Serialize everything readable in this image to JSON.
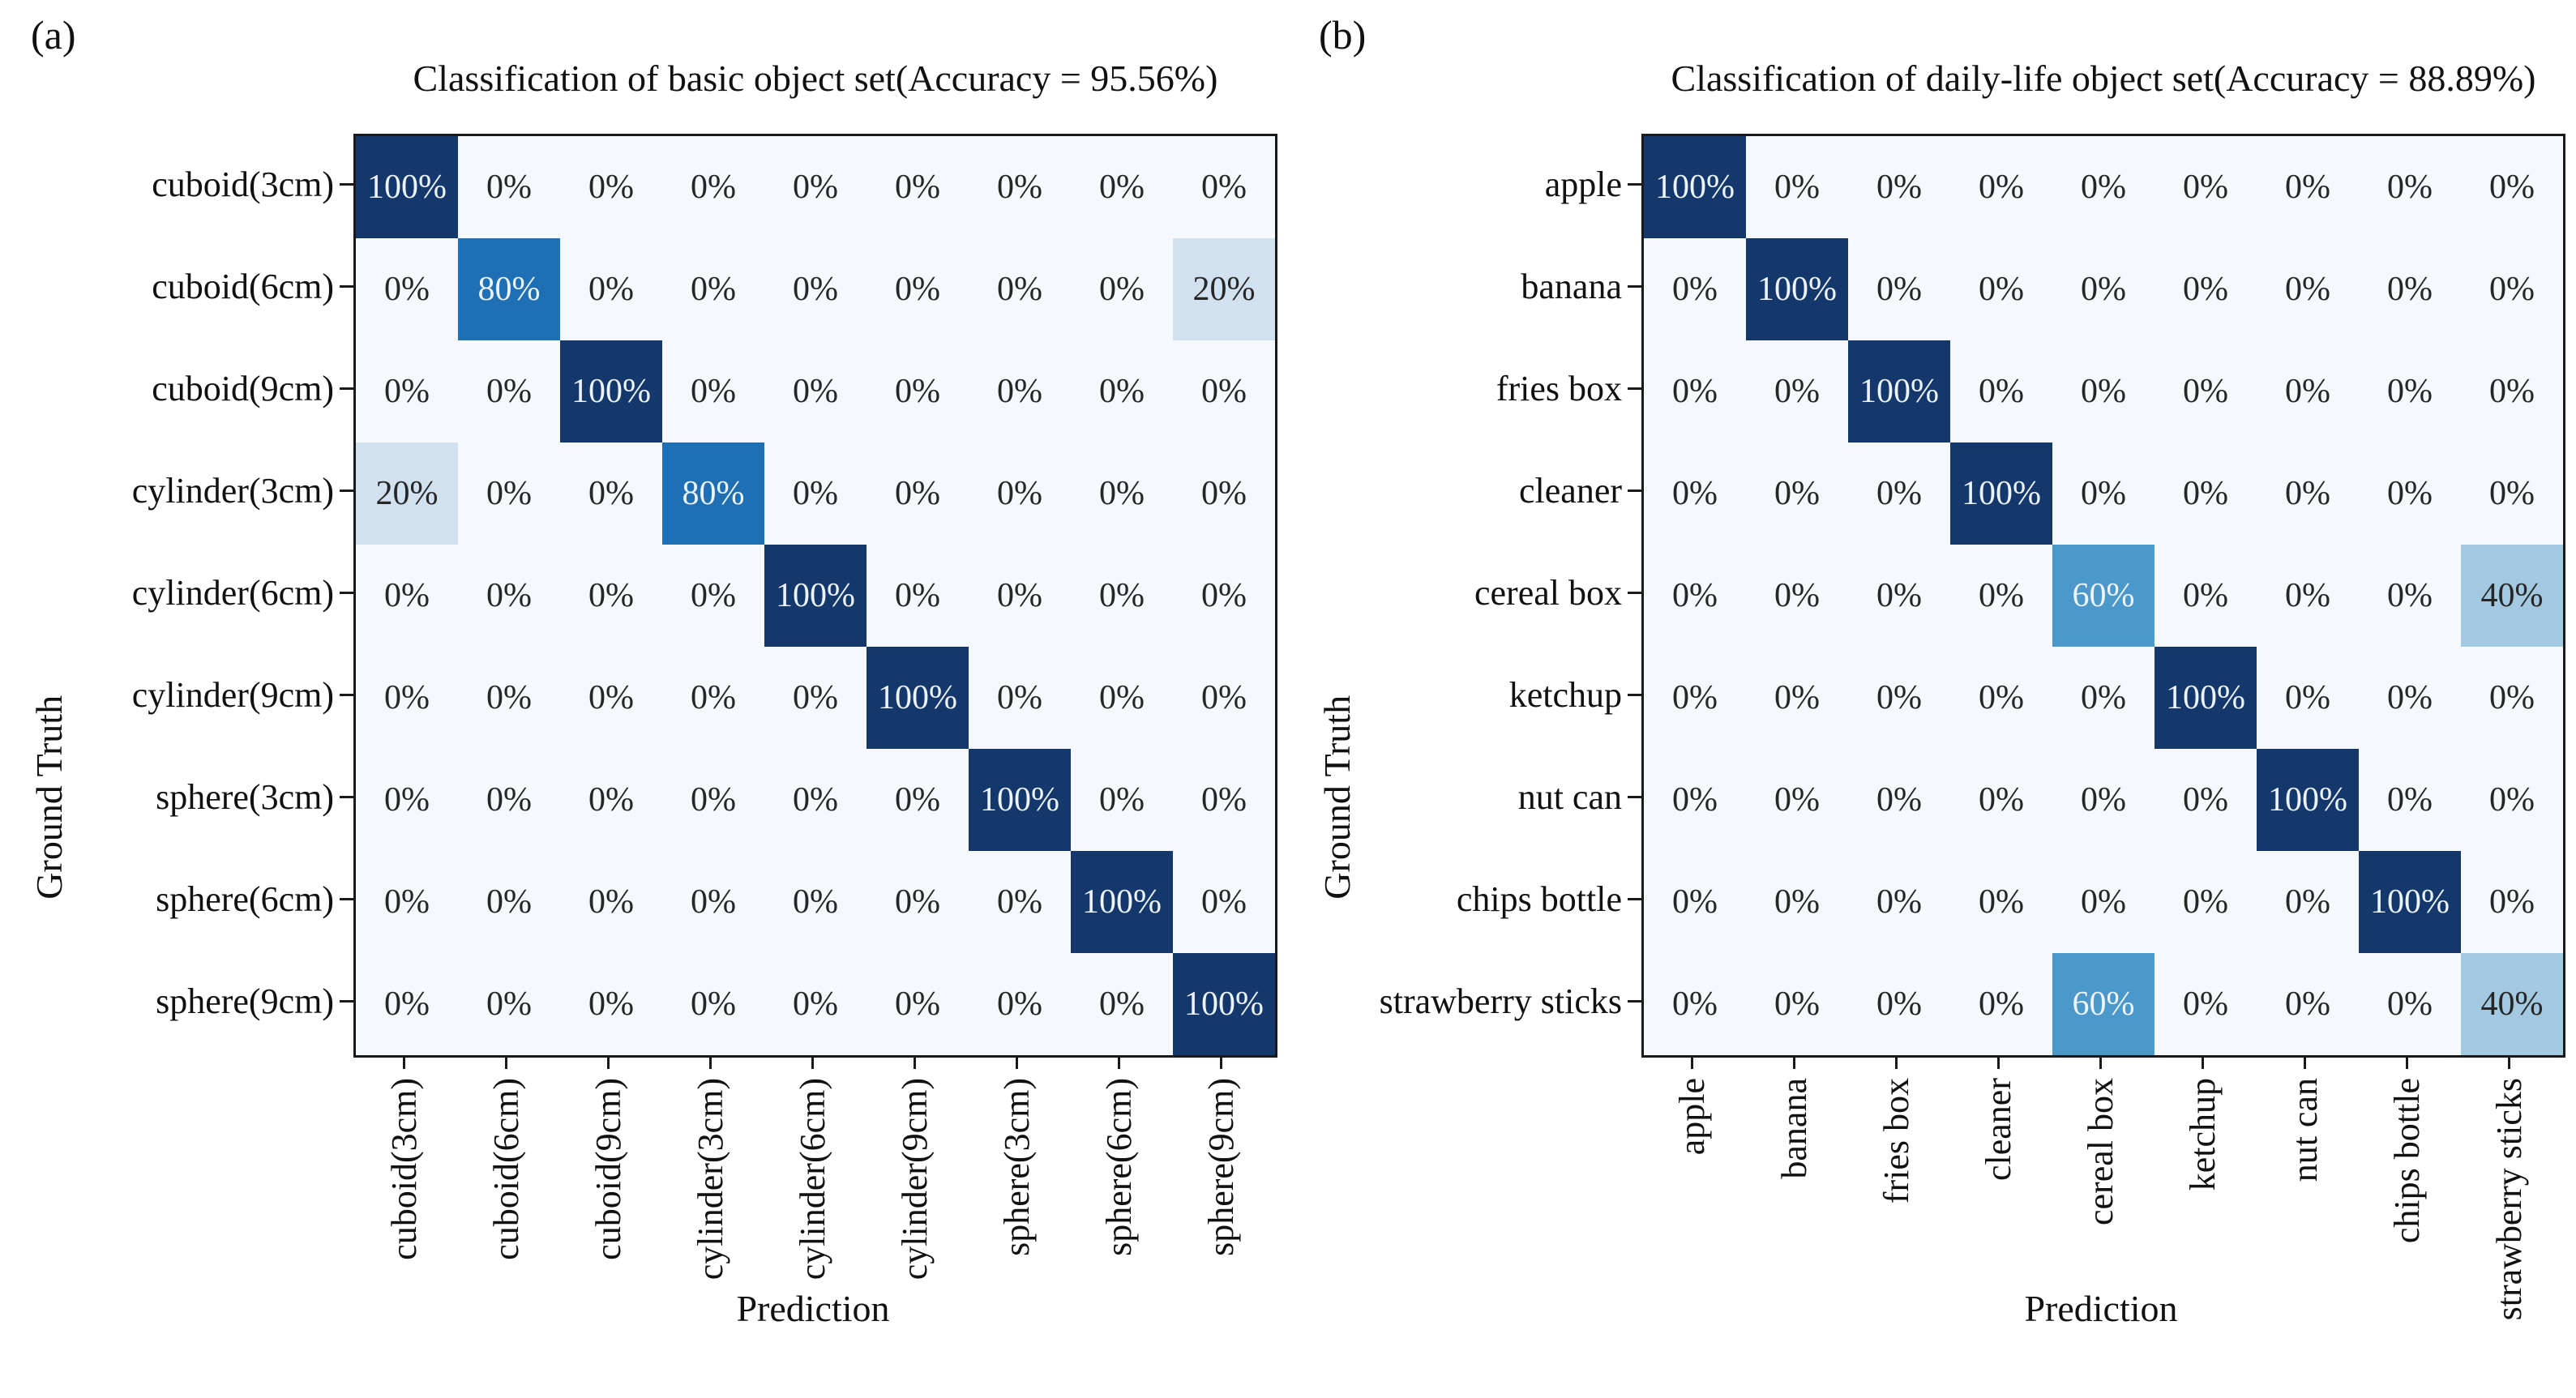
{
  "figure": {
    "background": "#ffffff"
  },
  "colors": {
    "scale": {
      "0": "#f5f8fc",
      "20": "#d2e1ef",
      "40": "#a3c9e1",
      "60": "#4b98ca",
      "80": "#1f6fb5",
      "100": "#14386c"
    },
    "text_dark": "#262626",
    "text_light": "#edf3fa",
    "border": "#1a1a1a"
  },
  "chart_data": [
    {
      "type": "heatmap",
      "panel_label": "(a)",
      "title": "Classification of basic object set(Accuracy = 95.56%)",
      "xlabel": "Prediction",
      "ylabel": "Ground Truth",
      "accuracy": "95.56%",
      "unit": "%",
      "legend": "none",
      "grid": false,
      "categories": [
        "cuboid(3cm)",
        "cuboid(6cm)",
        "cuboid(9cm)",
        "cylinder(3cm)",
        "cylinder(6cm)",
        "cylinder(9cm)",
        "sphere(3cm)",
        "sphere(6cm)",
        "sphere(9cm)"
      ],
      "values": [
        [
          100,
          0,
          0,
          0,
          0,
          0,
          0,
          0,
          0
        ],
        [
          0,
          80,
          0,
          0,
          0,
          0,
          0,
          0,
          20
        ],
        [
          0,
          0,
          100,
          0,
          0,
          0,
          0,
          0,
          0
        ],
        [
          20,
          0,
          0,
          80,
          0,
          0,
          0,
          0,
          0
        ],
        [
          0,
          0,
          0,
          0,
          100,
          0,
          0,
          0,
          0
        ],
        [
          0,
          0,
          0,
          0,
          0,
          100,
          0,
          0,
          0
        ],
        [
          0,
          0,
          0,
          0,
          0,
          0,
          100,
          0,
          0
        ],
        [
          0,
          0,
          0,
          0,
          0,
          0,
          0,
          100,
          0
        ],
        [
          0,
          0,
          0,
          0,
          0,
          0,
          0,
          0,
          100
        ]
      ]
    },
    {
      "type": "heatmap",
      "panel_label": "(b)",
      "title": "Classification of daily-life object set(Accuracy = 88.89%)",
      "xlabel": "Prediction",
      "ylabel": "Ground Truth",
      "accuracy": "88.89%",
      "unit": "%",
      "legend": "none",
      "grid": false,
      "categories": [
        "apple",
        "banana",
        "fries box",
        "cleaner",
        "cereal box",
        "ketchup",
        "nut can",
        "chips bottle",
        "strawberry sticks"
      ],
      "values": [
        [
          100,
          0,
          0,
          0,
          0,
          0,
          0,
          0,
          0
        ],
        [
          0,
          100,
          0,
          0,
          0,
          0,
          0,
          0,
          0
        ],
        [
          0,
          0,
          100,
          0,
          0,
          0,
          0,
          0,
          0
        ],
        [
          0,
          0,
          0,
          100,
          0,
          0,
          0,
          0,
          0
        ],
        [
          0,
          0,
          0,
          0,
          60,
          0,
          0,
          0,
          40
        ],
        [
          0,
          0,
          0,
          0,
          0,
          100,
          0,
          0,
          0
        ],
        [
          0,
          0,
          0,
          0,
          0,
          0,
          100,
          0,
          0
        ],
        [
          0,
          0,
          0,
          0,
          0,
          0,
          0,
          100,
          0
        ],
        [
          0,
          0,
          0,
          0,
          60,
          0,
          0,
          0,
          40
        ]
      ]
    }
  ]
}
